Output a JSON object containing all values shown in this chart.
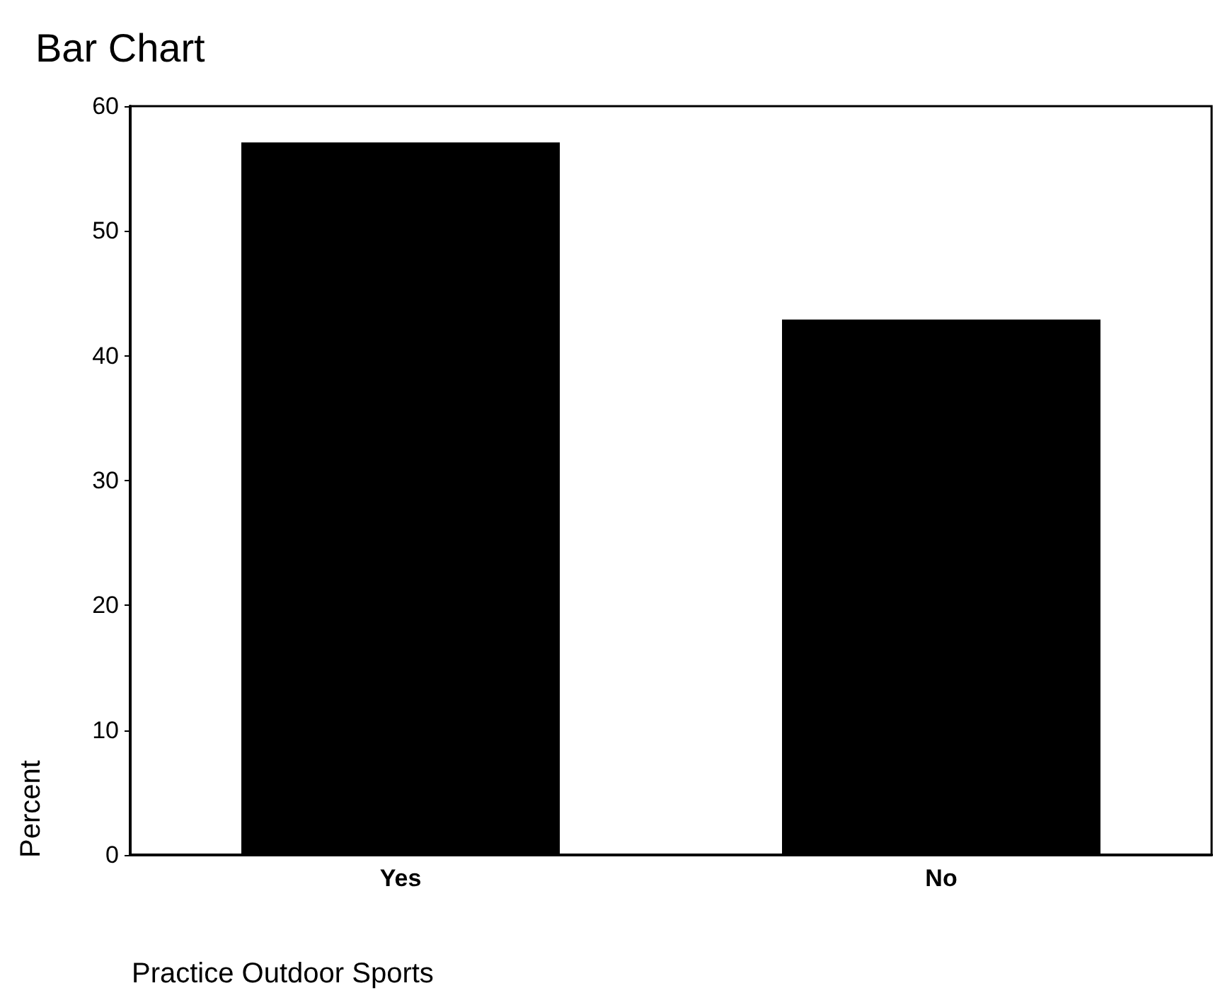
{
  "chart_data": {
    "type": "bar",
    "title": "Bar Chart",
    "xlabel": "Practice Outdoor Sports",
    "ylabel": "Percent",
    "categories": [
      "Yes",
      "No"
    ],
    "values": [
      57.1,
      42.9
    ],
    "color": "#000000",
    "ylim": [
      0,
      60
    ],
    "yticks": [
      0,
      10,
      20,
      30,
      40,
      50,
      60
    ],
    "grid": false
  }
}
